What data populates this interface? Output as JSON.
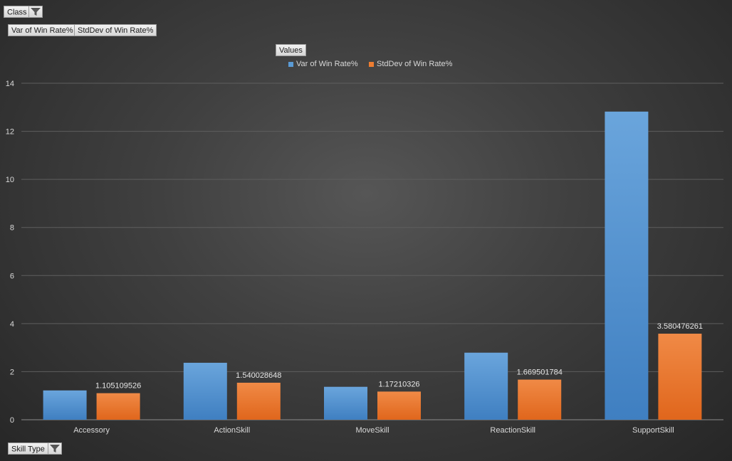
{
  "filters": {
    "report_filter": "Class",
    "value_fields": [
      "Var of Win Rate%",
      "StdDev of Win Rate%"
    ],
    "axis_field": "Skill Type",
    "legend_field": "Values"
  },
  "icons": {
    "filter": "filter-funnel-icon",
    "dropdown": "chevron-down-icon"
  },
  "colors": {
    "series1": "#5b9bd5",
    "series2": "#ed7d31"
  },
  "chart_data": {
    "type": "bar",
    "categories": [
      "Accessory",
      "ActionSkill",
      "MoveSkill",
      "ReactionSkill",
      "SupportSkill"
    ],
    "series": [
      {
        "name": "Var of Win Rate%",
        "values": [
          1.22,
          2.37,
          1.37,
          2.79,
          12.82
        ],
        "labels": [
          "",
          "",
          "",
          "",
          ""
        ]
      },
      {
        "name": "StdDev of Win Rate%",
        "values": [
          1.105109526,
          1.540028648,
          1.17210326,
          1.669501784,
          3.580476261
        ],
        "labels": [
          "1.105109526",
          "1.540028648",
          "1.17210326",
          "1.669501784",
          "3.580476261"
        ]
      }
    ],
    "y_ticks": [
      "0",
      "2",
      "4",
      "6",
      "8",
      "10",
      "12",
      "14"
    ],
    "ylim": [
      0,
      14
    ],
    "grid": true,
    "legend_position": "top"
  }
}
